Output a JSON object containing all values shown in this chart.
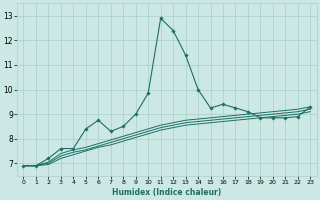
{
  "title": "",
  "xlabel": "Humidex (Indice chaleur)",
  "ylabel": "",
  "background_color": "#cce8e4",
  "grid_color": "#aacfca",
  "line_color": "#1e6e65",
  "xlim": [
    -0.5,
    23.5
  ],
  "ylim": [
    6.5,
    13.5
  ],
  "yticks": [
    7,
    8,
    9,
    10,
    11,
    12,
    13
  ],
  "xticks": [
    0,
    1,
    2,
    3,
    4,
    5,
    6,
    7,
    8,
    9,
    10,
    11,
    12,
    13,
    14,
    15,
    16,
    17,
    18,
    19,
    20,
    21,
    22,
    23
  ],
  "spiky_series": {
    "x": [
      0,
      1,
      2,
      3,
      4,
      5,
      6,
      7,
      8,
      9,
      10,
      11,
      12,
      13,
      14,
      15,
      16,
      17,
      18,
      19,
      20,
      21,
      22,
      23
    ],
    "y": [
      6.9,
      6.9,
      7.2,
      7.6,
      7.6,
      8.4,
      8.75,
      8.3,
      8.5,
      9.0,
      9.85,
      12.9,
      12.4,
      11.4,
      10.0,
      9.25,
      9.4,
      9.25,
      9.1,
      8.85,
      8.85,
      8.85,
      8.9,
      9.3
    ]
  },
  "smooth_series": [
    {
      "x": [
        0,
        1,
        2,
        3,
        4,
        5,
        6,
        7,
        8,
        9,
        10,
        11,
        12,
        13,
        14,
        15,
        16,
        17,
        18,
        19,
        20,
        21,
        22,
        23
      ],
      "y": [
        6.9,
        6.9,
        7.05,
        7.4,
        7.55,
        7.65,
        7.8,
        7.95,
        8.1,
        8.25,
        8.4,
        8.55,
        8.65,
        8.75,
        8.8,
        8.85,
        8.9,
        8.95,
        9.0,
        9.05,
        9.1,
        9.15,
        9.2,
        9.3
      ]
    },
    {
      "x": [
        0,
        1,
        2,
        3,
        4,
        5,
        6,
        7,
        8,
        9,
        10,
        11,
        12,
        13,
        14,
        15,
        16,
        17,
        18,
        19,
        20,
        21,
        22,
        23
      ],
      "y": [
        6.9,
        6.9,
        7.0,
        7.3,
        7.45,
        7.55,
        7.7,
        7.85,
        8.0,
        8.15,
        8.3,
        8.45,
        8.55,
        8.65,
        8.7,
        8.75,
        8.8,
        8.85,
        8.9,
        8.95,
        9.0,
        9.05,
        9.1,
        9.2
      ]
    },
    {
      "x": [
        0,
        1,
        2,
        3,
        4,
        5,
        6,
        7,
        8,
        9,
        10,
        11,
        12,
        13,
        14,
        15,
        16,
        17,
        18,
        19,
        20,
        21,
        22,
        23
      ],
      "y": [
        6.9,
        6.9,
        6.95,
        7.2,
        7.35,
        7.5,
        7.65,
        7.75,
        7.9,
        8.05,
        8.2,
        8.35,
        8.45,
        8.55,
        8.6,
        8.65,
        8.7,
        8.75,
        8.8,
        8.85,
        8.9,
        8.95,
        9.0,
        9.1
      ]
    }
  ]
}
